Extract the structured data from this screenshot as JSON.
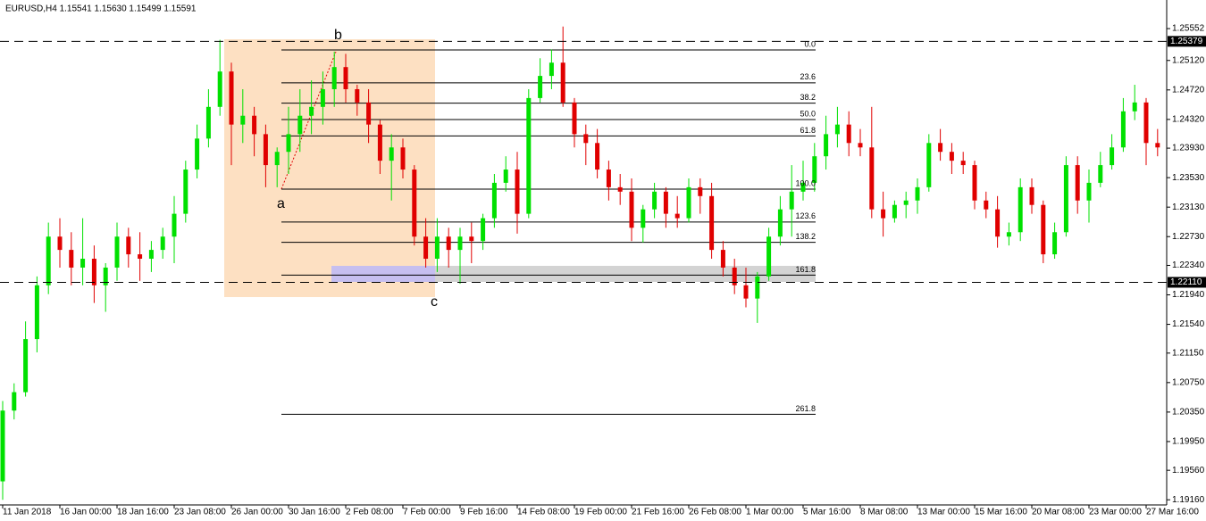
{
  "chart_data": {
    "type": "candlestick",
    "title": "EURUSD,H4  1.15541 1.15630 1.15499 1.15591",
    "bull_color": "#00e000",
    "bear_color": "#e00000",
    "ylim": [
      1.1909,
      1.2594
    ],
    "yticks": [
      1.25552,
      {
        "value": 1.2512,
        "label": "1.25120"
      },
      {
        "value": 1.2472,
        "label": "1.24720"
      },
      {
        "value": 1.2432,
        "label": "1.24320"
      },
      {
        "value": 1.2393,
        "label": "1.23930"
      },
      {
        "value": 1.2353,
        "label": "1.23530"
      },
      {
        "value": 1.2313,
        "label": "1.23130"
      },
      {
        "value": 1.2273,
        "label": "1.22730"
      },
      {
        "value": 1.2234,
        "label": "1.22340"
      },
      {
        "value": 1.2194,
        "label": "1.21940"
      },
      {
        "value": 1.2154,
        "label": "1.21540"
      },
      {
        "value": 1.2115,
        "label": "1.21150"
      },
      {
        "value": 1.2075,
        "label": "1.20750"
      },
      {
        "value": 1.2035,
        "label": "1.20350"
      },
      {
        "value": 1.1995,
        "label": "1.19950"
      },
      {
        "value": 1.1956,
        "label": "1.19560"
      },
      {
        "value": 1.1916,
        "label": "1.19160"
      }
    ],
    "hlines": [
      {
        "value": 1.25379,
        "label": "1.25379"
      },
      {
        "value": 1.2211,
        "label": "1.22110"
      }
    ],
    "fib_levels": [
      {
        "value": 0,
        "label": "0.0"
      },
      23.6,
      38.2,
      {
        "value": 50,
        "label": "50.0"
      },
      61.8,
      {
        "value": 100,
        "label": "100.0"
      },
      123.6,
      138.2,
      161.8,
      261.8
    ],
    "annotations": [
      "a",
      "b",
      "c"
    ],
    "categories": [
      "11 Jan 2018",
      null,
      null,
      null,
      null,
      "16 Jan 00:00",
      null,
      null,
      null,
      null,
      "18 Jan 16:00",
      null,
      null,
      null,
      null,
      "23 Jan 08:00",
      null,
      null,
      null,
      null,
      "26 Jan 00:00",
      null,
      null,
      null,
      null,
      "30 Jan 16:00",
      null,
      null,
      null,
      null,
      "2 Feb 08:00",
      null,
      null,
      null,
      null,
      "7 Feb 00:00",
      null,
      null,
      null,
      null,
      "9 Feb 16:00",
      null,
      null,
      null,
      null,
      "14 Feb 08:00",
      null,
      null,
      null,
      null,
      "19 Feb 00:00",
      null,
      null,
      null,
      null,
      "21 Feb 16:00",
      null,
      null,
      null,
      null,
      "26 Feb 08:00",
      null,
      null,
      null,
      null,
      "1 Mar 00:00",
      null,
      null,
      null,
      null,
      "5 Mar 16:00",
      null,
      null,
      null,
      null,
      "8 Mar 08:00",
      null,
      null,
      null,
      null,
      "13 Mar 00:00",
      null,
      null,
      null,
      null,
      "15 Mar 16:00",
      null,
      null,
      null,
      null,
      "20 Mar 08:00",
      null,
      null,
      null,
      null,
      "23 Mar 00:00",
      null,
      null,
      null,
      null,
      "27 Mar 16:00",
      null
    ],
    "ohlc": [
      [
        1.1941,
        1.205,
        1.1916,
        1.2037
      ],
      [
        1.2037,
        1.2074,
        1.2025,
        1.2062
      ],
      [
        1.2062,
        1.2158,
        1.2056,
        1.2134
      ],
      [
        1.2134,
        1.2219,
        1.2116,
        1.2207
      ],
      [
        1.2207,
        1.2292,
        1.2195,
        1.2273
      ],
      [
        1.2273,
        1.2298,
        1.2231,
        1.2255
      ],
      [
        1.2255,
        1.2279,
        1.2207,
        1.2231
      ],
      [
        1.2231,
        1.2298,
        1.2207,
        1.2243
      ],
      [
        1.2243,
        1.2261,
        1.2183,
        1.2207
      ],
      [
        1.2207,
        1.2237,
        1.2171,
        1.2231
      ],
      [
        1.2231,
        1.2292,
        1.2213,
        1.2273
      ],
      [
        1.2273,
        1.2285,
        1.2231,
        1.2249
      ],
      [
        1.2249,
        1.2279,
        1.2213,
        1.2243
      ],
      [
        1.2243,
        1.2267,
        1.2225,
        1.2255
      ],
      [
        1.2255,
        1.2285,
        1.2243,
        1.2273
      ],
      [
        1.2273,
        1.2328,
        1.2237,
        1.2304
      ],
      [
        1.2304,
        1.2376,
        1.2292,
        1.2364
      ],
      [
        1.2364,
        1.2425,
        1.2352,
        1.2406
      ],
      [
        1.2406,
        1.2473,
        1.2394,
        1.2449
      ],
      [
        1.2449,
        1.254,
        1.2437,
        1.2497
      ],
      [
        1.2497,
        1.2509,
        1.237,
        1.2425
      ],
      [
        1.2425,
        1.2473,
        1.24,
        1.2437
      ],
      [
        1.2437,
        1.2449,
        1.2382,
        1.2412
      ],
      [
        1.2412,
        1.2425,
        1.234,
        1.237
      ],
      [
        1.237,
        1.2394,
        1.234,
        1.2388
      ],
      [
        1.2388,
        1.2449,
        1.2358,
        1.2412
      ],
      [
        1.2412,
        1.2473,
        1.2388,
        1.2437
      ],
      [
        1.2437,
        1.2485,
        1.2412,
        1.2449
      ],
      [
        1.2449,
        1.2497,
        1.2425,
        1.2473
      ],
      [
        1.2473,
        1.2524,
        1.2449,
        1.2503
      ],
      [
        1.2503,
        1.2521,
        1.2455,
        1.2473
      ],
      [
        1.2473,
        1.2479,
        1.2437,
        1.2455
      ],
      [
        1.2455,
        1.2473,
        1.24,
        1.2425
      ],
      [
        1.2425,
        1.2431,
        1.2358,
        1.2376
      ],
      [
        1.2376,
        1.2412,
        1.2322,
        1.2394
      ],
      [
        1.2394,
        1.2406,
        1.2352,
        1.2364
      ],
      [
        1.2364,
        1.237,
        1.2261,
        1.2273
      ],
      [
        1.2273,
        1.2298,
        1.2231,
        1.2243
      ],
      [
        1.2243,
        1.2298,
        1.2225,
        1.2273
      ],
      [
        1.2273,
        1.2285,
        1.2231,
        1.2255
      ],
      [
        1.2255,
        1.2285,
        1.2209,
        1.2273
      ],
      [
        1.2273,
        1.2292,
        1.2237,
        1.2267
      ],
      [
        1.2267,
        1.2304,
        1.2255,
        1.2298
      ],
      [
        1.2298,
        1.2358,
        1.2285,
        1.2346
      ],
      [
        1.2346,
        1.2382,
        1.2334,
        1.2364
      ],
      [
        1.2364,
        1.2388,
        1.2277,
        1.2304
      ],
      [
        1.2304,
        1.2473,
        1.2298,
        1.2461
      ],
      [
        1.2461,
        1.2515,
        1.2455,
        1.2491
      ],
      [
        1.2491,
        1.2527,
        1.2473,
        1.2509
      ],
      [
        1.2509,
        1.2558,
        1.2449,
        1.2455
      ],
      [
        1.2455,
        1.2461,
        1.2394,
        1.2412
      ],
      [
        1.2412,
        1.2425,
        1.237,
        1.24
      ],
      [
        1.24,
        1.2419,
        1.2352,
        1.2364
      ],
      [
        1.2364,
        1.2376,
        1.2322,
        1.234
      ],
      [
        1.234,
        1.2358,
        1.2316,
        1.2334
      ],
      [
        1.2334,
        1.2352,
        1.2267,
        1.2285
      ],
      [
        1.2285,
        1.2316,
        1.2265,
        1.231
      ],
      [
        1.231,
        1.2346,
        1.2298,
        1.2334
      ],
      [
        1.2334,
        1.234,
        1.2285,
        1.2304
      ],
      [
        1.2304,
        1.2328,
        1.2285,
        1.2298
      ],
      [
        1.2298,
        1.2352,
        1.2292,
        1.234
      ],
      [
        1.234,
        1.2352,
        1.2304,
        1.2328
      ],
      [
        1.2328,
        1.2346,
        1.2243,
        1.2255
      ],
      [
        1.2255,
        1.2267,
        1.2219,
        1.2231
      ],
      [
        1.2231,
        1.2243,
        1.2195,
        1.2207
      ],
      [
        1.2207,
        1.2231,
        1.2177,
        1.2189
      ],
      [
        1.2189,
        1.2225,
        1.2156,
        1.2219
      ],
      [
        1.2219,
        1.2285,
        1.2213,
        1.2273
      ],
      [
        1.2273,
        1.2328,
        1.2261,
        1.231
      ],
      [
        1.231,
        1.237,
        1.2273,
        1.2334
      ],
      [
        1.2334,
        1.2376,
        1.2322,
        1.2346
      ],
      [
        1.2346,
        1.24,
        1.2334,
        1.2382
      ],
      [
        1.2382,
        1.2437,
        1.2364,
        1.2412
      ],
      [
        1.2412,
        1.2449,
        1.2394,
        1.2425
      ],
      [
        1.2425,
        1.2443,
        1.2382,
        1.24
      ],
      [
        1.24,
        1.2419,
        1.2382,
        1.2394
      ],
      [
        1.2394,
        1.2449,
        1.2298,
        1.231
      ],
      [
        1.231,
        1.2334,
        1.2273,
        1.2298
      ],
      [
        1.2298,
        1.2322,
        1.2292,
        1.2316
      ],
      [
        1.2316,
        1.2334,
        1.2298,
        1.2322
      ],
      [
        1.2322,
        1.2352,
        1.2304,
        1.234
      ],
      [
        1.234,
        1.2412,
        1.2334,
        1.24
      ],
      [
        1.24,
        1.2419,
        1.2376,
        1.2388
      ],
      [
        1.2388,
        1.24,
        1.2358,
        1.2376
      ],
      [
        1.2376,
        1.2388,
        1.2358,
        1.237
      ],
      [
        1.237,
        1.2376,
        1.231,
        1.2322
      ],
      [
        1.2322,
        1.2334,
        1.2298,
        1.231
      ],
      [
        1.231,
        1.2328,
        1.2258,
        1.2273
      ],
      [
        1.2273,
        1.2292,
        1.2261,
        1.2279
      ],
      [
        1.2279,
        1.2352,
        1.2267,
        1.234
      ],
      [
        1.234,
        1.2352,
        1.2304,
        1.2316
      ],
      [
        1.2316,
        1.2322,
        1.2237,
        1.2249
      ],
      [
        1.2249,
        1.2292,
        1.2243,
        1.2279
      ],
      [
        1.2279,
        1.2382,
        1.2273,
        1.237
      ],
      [
        1.237,
        1.2382,
        1.2304,
        1.2322
      ],
      [
        1.2322,
        1.2364,
        1.2292,
        1.2346
      ],
      [
        1.2346,
        1.2388,
        1.234,
        1.237
      ],
      [
        1.237,
        1.2412,
        1.2364,
        1.2394
      ],
      [
        1.2394,
        1.2461,
        1.2388,
        1.2443
      ],
      [
        1.2443,
        1.2479,
        1.2431,
        1.2455
      ],
      [
        1.2455,
        1.2461,
        1.237,
        1.24
      ],
      [
        1.24,
        1.2419,
        1.2382,
        1.2394
      ]
    ]
  }
}
